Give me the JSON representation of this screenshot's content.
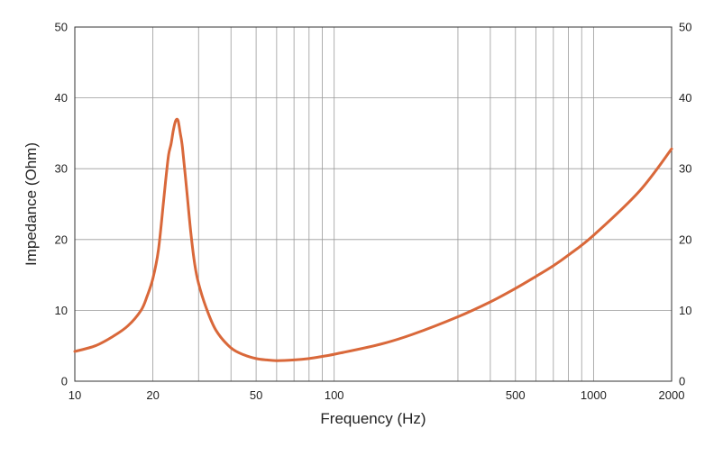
{
  "chart_data": {
    "type": "line",
    "xlabel": "Frequency (Hz)",
    "ylabel": "Impedance (Ohm)",
    "x_scale": "log",
    "xlim": [
      10,
      2000
    ],
    "ylim": [
      0,
      50
    ],
    "x_ticks": [
      10,
      20,
      50,
      100,
      500,
      1000,
      2000
    ],
    "x_tick_labels": [
      "10",
      "20",
      "50",
      "100",
      "500",
      "1000",
      "2000"
    ],
    "x_gridlines": [
      20,
      30,
      40,
      50,
      60,
      70,
      80,
      90,
      100,
      300,
      400,
      500,
      600,
      700,
      800,
      900,
      1000
    ],
    "y_ticks": [
      0,
      10,
      20,
      30,
      40,
      50
    ],
    "y_tick_labels": [
      "0",
      "10",
      "20",
      "30",
      "40",
      "50"
    ],
    "y_ticks_right": true,
    "grid": true,
    "legend": "none",
    "series": [
      {
        "color": "#d9683a",
        "x": [
          10,
          12,
          14,
          16,
          18,
          19,
          20,
          21,
          22,
          22.5,
          23,
          23.5,
          24,
          24.5,
          25,
          25.5,
          26,
          27,
          28,
          29,
          30,
          32,
          35,
          40,
          45,
          50,
          55,
          60,
          70,
          80,
          90,
          100,
          150,
          200,
          300,
          400,
          500,
          600,
          700,
          800,
          1000,
          1500,
          2000
        ],
        "y": [
          4.2,
          5.0,
          6.3,
          7.8,
          10.0,
          12.0,
          14.5,
          18.5,
          25.5,
          29.0,
          32.0,
          33.5,
          35.5,
          36.8,
          36.8,
          35.0,
          33.0,
          27.0,
          21.0,
          16.5,
          13.8,
          10.5,
          7.2,
          4.7,
          3.7,
          3.2,
          3.0,
          2.9,
          3.0,
          3.2,
          3.5,
          3.8,
          5.2,
          6.6,
          9.1,
          11.2,
          13.1,
          14.8,
          16.3,
          17.8,
          20.6,
          26.8,
          32.8
        ]
      }
    ]
  }
}
